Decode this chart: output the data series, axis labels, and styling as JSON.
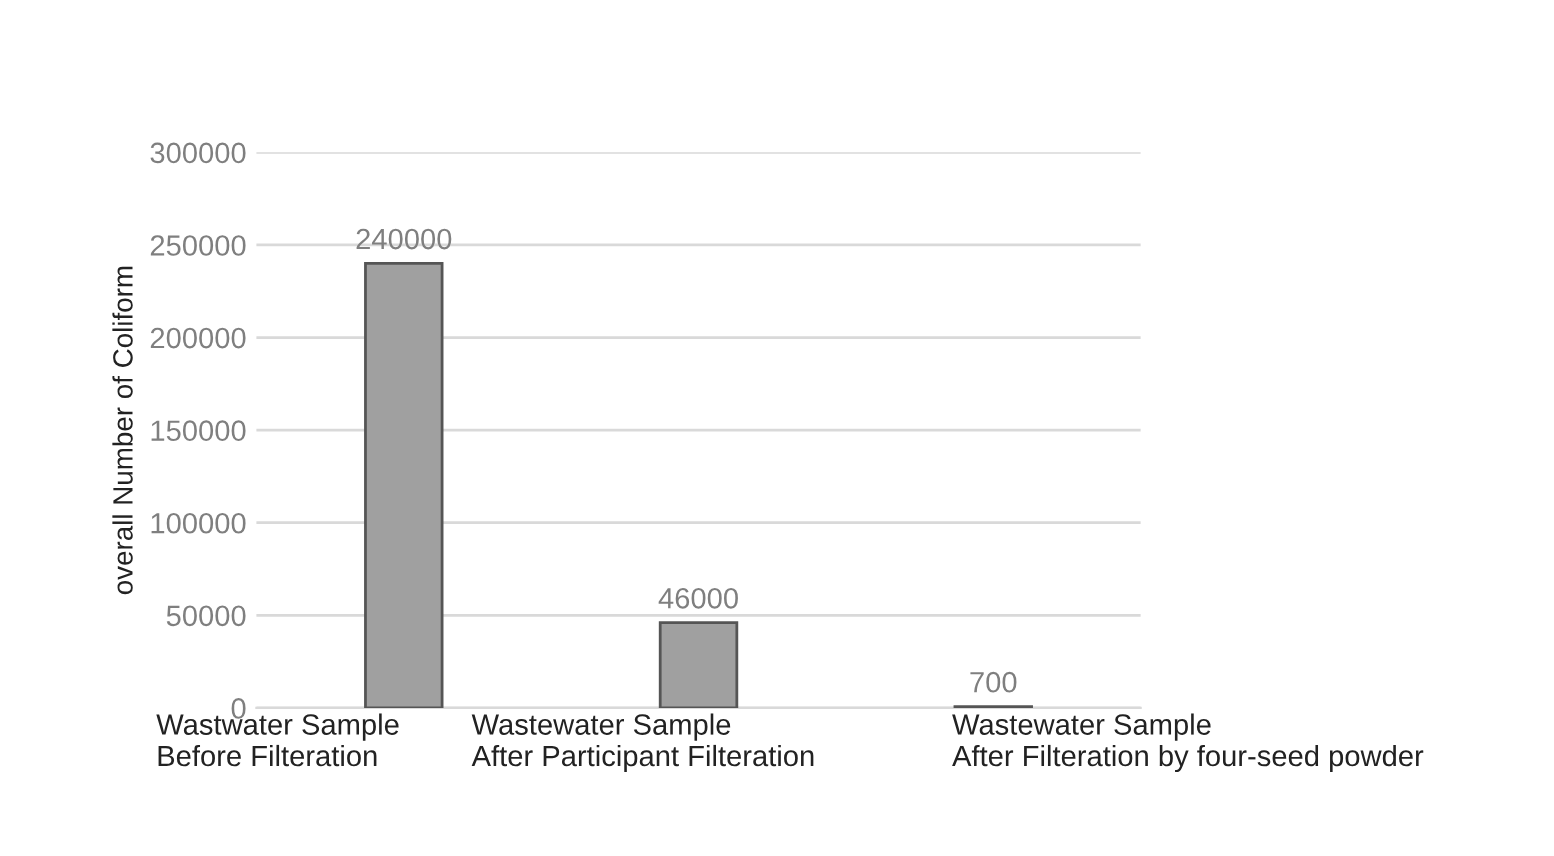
{
  "chart_data": {
    "type": "bar",
    "ylabel": "overall Number of Coliform",
    "categories": [
      "Wastwater Sample\nBefore Filteration",
      "Wastewater Sample\nAfter Participant Filteration",
      "Wastewater Sample\nAfter Filteration by four-seed powder"
    ],
    "values": [
      240000,
      46000,
      700
    ],
    "color": "#a0a0a0",
    "ylim": [
      0,
      300000
    ],
    "yticks": [
      0,
      50000,
      100000,
      150000,
      200000,
      250000,
      300000
    ],
    "grid": "y",
    "data_labels": true,
    "legend": false
  }
}
